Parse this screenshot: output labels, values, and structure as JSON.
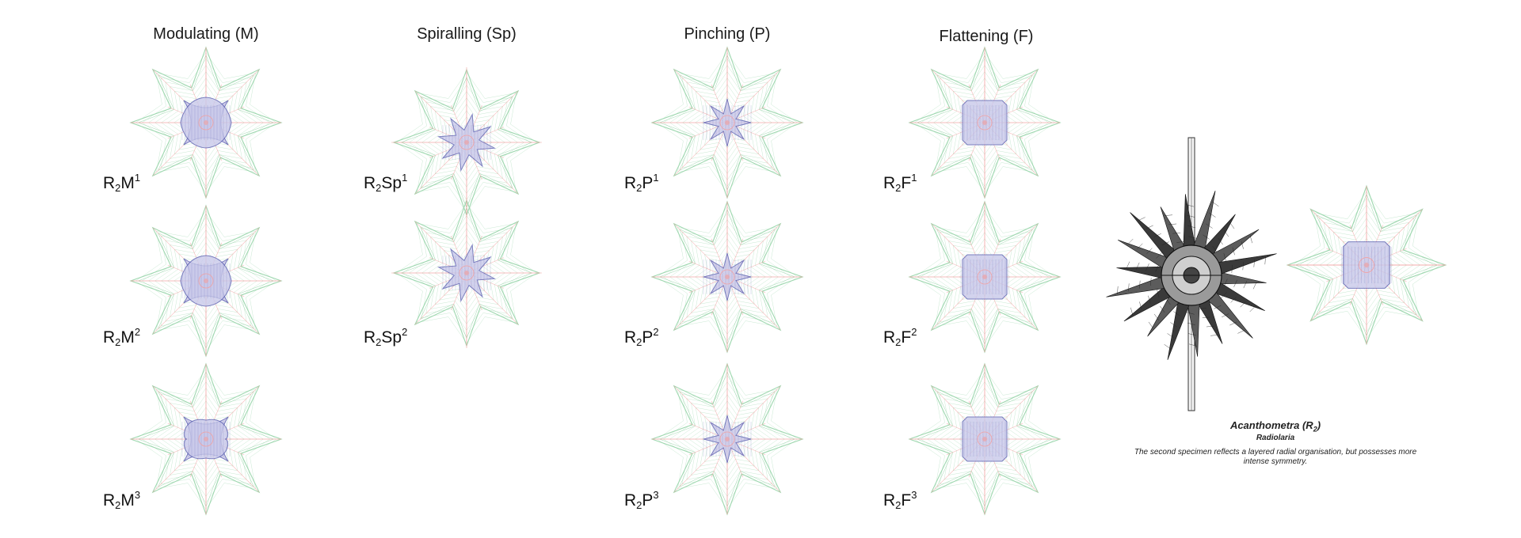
{
  "columns": [
    {
      "title": "Modulating (M)",
      "labels": [
        {
          "base": "R",
          "sub": "2",
          "code": "M",
          "sup": "1"
        },
        {
          "base": "R",
          "sub": "2",
          "code": "M",
          "sup": "2"
        },
        {
          "base": "R",
          "sub": "2",
          "code": "M",
          "sup": "3"
        }
      ]
    },
    {
      "title": "Spiralling (Sp)",
      "labels": [
        {
          "base": "R",
          "sub": "2",
          "code": "Sp",
          "sup": "1"
        },
        {
          "base": "R",
          "sub": "2",
          "code": "Sp",
          "sup": "2"
        }
      ]
    },
    {
      "title": "Pinching (P)",
      "labels": [
        {
          "base": "R",
          "sub": "2",
          "code": "P",
          "sup": "1"
        },
        {
          "base": "R",
          "sub": "2",
          "code": "P",
          "sup": "2"
        },
        {
          "base": "R",
          "sub": "2",
          "code": "P",
          "sup": "3"
        }
      ]
    },
    {
      "title": "Flattening (F)",
      "labels": [
        {
          "base": "R",
          "sub": "2",
          "code": "F",
          "sup": "1"
        },
        {
          "base": "R",
          "sub": "2",
          "code": "F",
          "sup": "2"
        },
        {
          "base": "R",
          "sub": "2",
          "code": "F",
          "sup": "3"
        }
      ]
    }
  ],
  "specimen": {
    "name": "Acanthometra (R",
    "name_sub": "2",
    "name_close": ")",
    "group": "Radiolaria",
    "description": "The second specimen reflects a layered radial organisation, but possesses more intense symmetry."
  },
  "colors": {
    "green": "#9fd8b0",
    "red": "#f2a0a0",
    "blue": "#5a5fb0",
    "blue_fill": "#c9c9ea",
    "grey": "#9a9a9a",
    "ink": "#1a1a1a"
  }
}
